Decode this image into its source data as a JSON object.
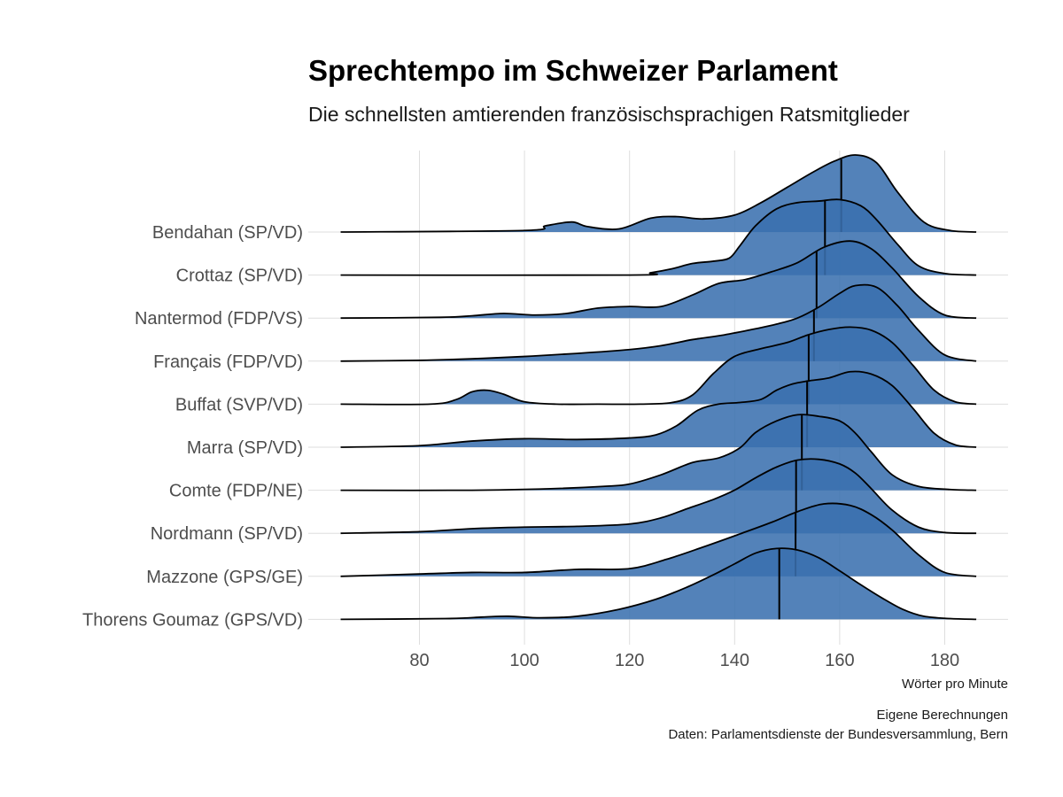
{
  "colors": {
    "fill": "#3a6faf",
    "line": "#000000",
    "grid": "#dedede"
  },
  "chart_data": {
    "type": "ridgeline",
    "title": "Sprechtempo im Schweizer Parlament",
    "subtitle": "Die schnellsten amtierenden französischsprachigen Ratsmitglieder",
    "xlabel": "Wörter pro Minute",
    "caption": [
      "Eigene Berechnungen",
      "Daten: Parlamentsdienste der Bundesversammlung, Bern"
    ],
    "xlim": [
      64,
      187
    ],
    "xticks": [
      80,
      100,
      120,
      140,
      160,
      180
    ],
    "series": [
      {
        "name": "Bendahan (SP/VD)",
        "median": 160.3,
        "x": [
          65,
          100,
          104,
          109,
          112,
          118,
          124,
          129,
          134,
          140,
          145,
          150,
          155,
          159,
          163,
          167,
          171,
          176,
          181,
          186
        ],
        "y": [
          0,
          0.02,
          0.08,
          0.13,
          0.07,
          0.04,
          0.18,
          0.2,
          0.17,
          0.22,
          0.38,
          0.58,
          0.78,
          0.92,
          1.0,
          0.9,
          0.52,
          0.13,
          0.02,
          0
        ]
      },
      {
        "name": "Crottaz (SP/VD)",
        "median": 157.2,
        "x": [
          65,
          120,
          124,
          128,
          132,
          136,
          139,
          141,
          144,
          148,
          152,
          156,
          160,
          164,
          167,
          171,
          175,
          180,
          186
        ],
        "y": [
          0,
          0,
          0.03,
          0.08,
          0.15,
          0.18,
          0.22,
          0.38,
          0.64,
          0.86,
          0.94,
          0.96,
          0.98,
          0.9,
          0.72,
          0.4,
          0.12,
          0.02,
          0
        ]
      },
      {
        "name": "Nantermod (FDP/VS)",
        "median": 155.6,
        "x": [
          65,
          84,
          90,
          96,
          102,
          108,
          114,
          120,
          126,
          132,
          137,
          142,
          147,
          152,
          157,
          162,
          166,
          170,
          175,
          180,
          186
        ],
        "y": [
          0,
          0.01,
          0.03,
          0.06,
          0.04,
          0.06,
          0.13,
          0.15,
          0.15,
          0.3,
          0.45,
          0.5,
          0.6,
          0.72,
          0.92,
          1.0,
          0.9,
          0.65,
          0.28,
          0.04,
          0
        ]
      },
      {
        "name": "Français (FDP/VD)",
        "median": 155.1,
        "x": [
          65,
          80,
          90,
          100,
          110,
          120,
          126,
          132,
          138,
          144,
          148,
          152,
          156,
          160,
          163,
          167,
          171,
          175,
          180,
          186
        ],
        "y": [
          0,
          0.01,
          0.03,
          0.06,
          0.1,
          0.15,
          0.2,
          0.28,
          0.34,
          0.42,
          0.48,
          0.56,
          0.7,
          0.88,
          0.98,
          0.96,
          0.72,
          0.4,
          0.08,
          0
        ]
      },
      {
        "name": "Buffat (SVP/VD)",
        "median": 154.1,
        "x": [
          65,
          82,
          87,
          90,
          93,
          96,
          100,
          106,
          114,
          122,
          128,
          132,
          136,
          140,
          145,
          150,
          154,
          158,
          162,
          166,
          170,
          174,
          178,
          182,
          186
        ],
        "y": [
          0,
          0,
          0.06,
          0.16,
          0.18,
          0.13,
          0.03,
          0,
          0,
          0,
          0.02,
          0.12,
          0.4,
          0.62,
          0.72,
          0.8,
          0.9,
          0.97,
          1.0,
          0.96,
          0.8,
          0.5,
          0.18,
          0.03,
          0
        ]
      },
      {
        "name": "Marra (SP/VD)",
        "median": 153.8,
        "x": [
          65,
          80,
          90,
          100,
          110,
          120,
          125,
          129,
          133,
          137,
          141,
          145,
          148,
          151,
          154,
          158,
          162,
          166,
          170,
          174,
          178,
          182,
          186
        ],
        "y": [
          0,
          0.02,
          0.08,
          0.11,
          0.1,
          0.12,
          0.16,
          0.28,
          0.48,
          0.56,
          0.58,
          0.62,
          0.74,
          0.82,
          0.86,
          0.9,
          0.98,
          0.95,
          0.8,
          0.5,
          0.18,
          0.03,
          0
        ]
      },
      {
        "name": "Comte (FDP/NE)",
        "median": 152.8,
        "x": [
          65,
          90,
          105,
          115,
          120,
          126,
          132,
          137,
          141,
          144,
          148,
          152,
          156,
          160,
          163,
          166,
          170,
          175,
          181,
          186
        ],
        "y": [
          0,
          0,
          0.02,
          0.05,
          0.08,
          0.2,
          0.36,
          0.42,
          0.55,
          0.75,
          0.9,
          0.98,
          0.96,
          0.9,
          0.74,
          0.5,
          0.2,
          0.05,
          0.01,
          0
        ]
      },
      {
        "name": "Nordmann (SP/VD)",
        "median": 151.7,
        "x": [
          65,
          80,
          90,
          100,
          110,
          120,
          126,
          131,
          136,
          140,
          144,
          148,
          152,
          156,
          160,
          163,
          166,
          170,
          175,
          180,
          186
        ],
        "y": [
          0,
          0.02,
          0.06,
          0.08,
          0.09,
          0.12,
          0.2,
          0.32,
          0.44,
          0.56,
          0.72,
          0.86,
          0.95,
          0.96,
          0.9,
          0.78,
          0.58,
          0.3,
          0.08,
          0.01,
          0
        ]
      },
      {
        "name": "Mazzone (GPS/GE)",
        "median": 151.6,
        "x": [
          65,
          80,
          90,
          100,
          110,
          120,
          127,
          134,
          141,
          147,
          152,
          157,
          162,
          166,
          170,
          175,
          180,
          186
        ],
        "y": [
          0,
          0.03,
          0.05,
          0.05,
          0.09,
          0.1,
          0.22,
          0.38,
          0.55,
          0.7,
          0.84,
          0.94,
          0.92,
          0.8,
          0.6,
          0.28,
          0.05,
          0
        ]
      },
      {
        "name": "Thorens Goumaz (GPS/VD)",
        "median": 148.5,
        "x": [
          65,
          85,
          92,
          97,
          103,
          110,
          118,
          125,
          131,
          136,
          140,
          144,
          148,
          152,
          156,
          160,
          164,
          168,
          172,
          176,
          181,
          186
        ],
        "y": [
          0,
          0.01,
          0.03,
          0.04,
          0.02,
          0.04,
          0.13,
          0.26,
          0.42,
          0.58,
          0.72,
          0.86,
          0.92,
          0.9,
          0.8,
          0.63,
          0.45,
          0.28,
          0.13,
          0.04,
          0.01,
          0
        ]
      }
    ]
  }
}
